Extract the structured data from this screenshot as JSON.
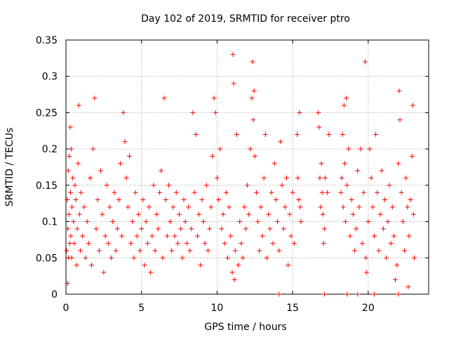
{
  "chart_data": {
    "type": "scatter",
    "title": "Day 102 of 2019, SRMTID for receiver ptro",
    "xlabel": "GPS time / hours",
    "ylabel": "SRMTID / TECUs",
    "xlim": [
      0,
      24
    ],
    "ylim": [
      0,
      0.35
    ],
    "x_ticks": [
      0,
      5,
      10,
      15,
      20
    ],
    "y_ticks": [
      0,
      0.05,
      0.1,
      0.15,
      0.2,
      0.25,
      0.3,
      0.35
    ],
    "x_tick_labels": [
      "0",
      "5",
      "10",
      "15",
      "20"
    ],
    "y_tick_labels": [
      "0",
      "0.05",
      "0.1",
      "0.15",
      "0.2",
      "0.25",
      "0.3",
      "0.35"
    ],
    "grid": true,
    "marker": "+",
    "series": [
      {
        "name": "SRMTID",
        "color": "#ff0000",
        "points": [
          [
            0.05,
            0.06
          ],
          [
            0.08,
            0.13
          ],
          [
            0.1,
            0.015
          ],
          [
            0.12,
            0.09
          ],
          [
            0.15,
            0.17
          ],
          [
            0.18,
            0.05
          ],
          [
            0.2,
            0.11
          ],
          [
            0.22,
            0.19
          ],
          [
            0.25,
            0.07
          ],
          [
            0.28,
            0.23
          ],
          [
            0.3,
            0.14
          ],
          [
            0.32,
            0.08
          ],
          [
            0.35,
            0.2
          ],
          [
            0.38,
            0.05
          ],
          [
            0.4,
            0.12
          ],
          [
            0.45,
            0.16
          ],
          [
            0.5,
            0.1
          ],
          [
            0.55,
            0.07
          ],
          [
            0.6,
            0.15
          ],
          [
            0.65,
            0.13
          ],
          [
            0.7,
            0.04
          ],
          [
            0.75,
            0.09
          ],
          [
            0.8,
            0.18
          ],
          [
            0.85,
            0.26
          ],
          [
            0.9,
            0.11
          ],
          [
            0.95,
            0.06
          ],
          [
            1.0,
            0.14
          ],
          [
            1.1,
            0.08
          ],
          [
            1.2,
            0.12
          ],
          [
            1.3,
            0.05
          ],
          [
            1.4,
            0.1
          ],
          [
            1.5,
            0.07
          ],
          [
            1.6,
            0.16
          ],
          [
            1.7,
            0.04
          ],
          [
            1.8,
            0.2
          ],
          [
            1.9,
            0.27
          ],
          [
            2.0,
            0.09
          ],
          [
            2.1,
            0.13
          ],
          [
            2.2,
            0.06
          ],
          [
            2.3,
            0.17
          ],
          [
            2.4,
            0.11
          ],
          [
            2.5,
            0.03
          ],
          [
            2.6,
            0.08
          ],
          [
            2.7,
            0.15
          ],
          [
            2.8,
            0.07
          ],
          [
            2.9,
            0.12
          ],
          [
            3.0,
            0.05
          ],
          [
            3.1,
            0.1
          ],
          [
            3.2,
            0.14
          ],
          [
            3.3,
            0.06
          ],
          [
            3.4,
            0.09
          ],
          [
            3.5,
            0.13
          ],
          [
            3.6,
            0.18
          ],
          [
            3.7,
            0.08
          ],
          [
            3.8,
            0.25
          ],
          [
            3.9,
            0.21
          ],
          [
            4.0,
            0.16
          ],
          [
            4.1,
            0.12
          ],
          [
            4.2,
            0.19
          ],
          [
            4.3,
            0.07
          ],
          [
            4.4,
            0.1
          ],
          [
            4.5,
            0.05
          ],
          [
            4.6,
            0.14
          ],
          [
            4.7,
            0.08
          ],
          [
            4.8,
            0.11
          ],
          [
            4.9,
            0.06
          ],
          [
            5.0,
            0.09
          ],
          [
            5.1,
            0.13
          ],
          [
            5.2,
            0.04
          ],
          [
            5.3,
            0.1
          ],
          [
            5.4,
            0.07
          ],
          [
            5.5,
            0.12
          ],
          [
            5.6,
            0.03
          ],
          [
            5.7,
            0.08
          ],
          [
            5.8,
            0.15
          ],
          [
            5.9,
            0.06
          ],
          [
            6.0,
            0.11
          ],
          [
            6.1,
            0.09
          ],
          [
            6.2,
            0.14
          ],
          [
            6.3,
            0.17
          ],
          [
            6.4,
            0.05
          ],
          [
            6.5,
            0.27
          ],
          [
            6.6,
            0.13
          ],
          [
            6.7,
            0.08
          ],
          [
            6.8,
            0.15
          ],
          [
            6.9,
            0.1
          ],
          [
            7.0,
            0.06
          ],
          [
            7.1,
            0.12
          ],
          [
            7.2,
            0.08
          ],
          [
            7.3,
            0.14
          ],
          [
            7.4,
            0.07
          ],
          [
            7.5,
            0.11
          ],
          [
            7.6,
            0.09
          ],
          [
            7.7,
            0.05
          ],
          [
            7.8,
            0.13
          ],
          [
            7.9,
            0.1
          ],
          [
            8.0,
            0.07
          ],
          [
            8.1,
            0.12
          ],
          [
            8.2,
            0.06
          ],
          [
            8.3,
            0.09
          ],
          [
            8.4,
            0.25
          ],
          [
            8.5,
            0.14
          ],
          [
            8.6,
            0.22
          ],
          [
            8.7,
            0.08
          ],
          [
            8.8,
            0.11
          ],
          [
            8.9,
            0.04
          ],
          [
            9.0,
            0.13
          ],
          [
            9.1,
            0.1
          ],
          [
            9.2,
            0.07
          ],
          [
            9.3,
            0.15
          ],
          [
            9.4,
            0.06
          ],
          [
            9.5,
            0.09
          ],
          [
            9.6,
            0.12
          ],
          [
            9.7,
            0.19
          ],
          [
            9.8,
            0.27
          ],
          [
            9.9,
            0.25
          ],
          [
            10.0,
            0.16
          ],
          [
            10.1,
            0.13
          ],
          [
            10.2,
            0.2
          ],
          [
            10.3,
            0.09
          ],
          [
            10.4,
            0.11
          ],
          [
            10.5,
            0.07
          ],
          [
            10.6,
            0.14
          ],
          [
            10.7,
            0.05
          ],
          [
            10.8,
            0.12
          ],
          [
            10.9,
            0.08
          ],
          [
            11.0,
            0.03
          ],
          [
            11.05,
            0.33
          ],
          [
            11.1,
            0.29
          ],
          [
            11.15,
            0.02
          ],
          [
            11.2,
            0.06
          ],
          [
            11.3,
            0.22
          ],
          [
            11.4,
            0.04
          ],
          [
            11.5,
            0.1
          ],
          [
            11.6,
            0.07
          ],
          [
            11.7,
            0.05
          ],
          [
            11.8,
            0.12
          ],
          [
            11.9,
            0.09
          ],
          [
            12.0,
            0.15
          ],
          [
            12.1,
            0.11
          ],
          [
            12.2,
            0.2
          ],
          [
            12.3,
            0.27
          ],
          [
            12.35,
            0.32
          ],
          [
            12.4,
            0.24
          ],
          [
            12.45,
            0.28
          ],
          [
            12.5,
            0.19
          ],
          [
            12.6,
            0.14
          ],
          [
            12.7,
            0.1
          ],
          [
            12.8,
            0.06
          ],
          [
            12.9,
            0.12
          ],
          [
            13.0,
            0.08
          ],
          [
            13.1,
            0.16
          ],
          [
            13.2,
            0.22
          ],
          [
            13.3,
            0.05
          ],
          [
            13.4,
            0.11
          ],
          [
            13.5,
            0.09
          ],
          [
            13.6,
            0.14
          ],
          [
            13.7,
            0.07
          ],
          [
            13.8,
            0.18
          ],
          [
            13.9,
            0.13
          ],
          [
            14.0,
            0.1
          ],
          [
            14.1,
            0.06
          ],
          [
            14.2,
            0.21
          ],
          [
            14.3,
            0.15
          ],
          [
            14.4,
            0.09
          ],
          [
            14.5,
            0.12
          ],
          [
            14.6,
            0.16
          ],
          [
            14.7,
            0.04
          ],
          [
            14.8,
            0.11
          ],
          [
            14.9,
            0.08
          ],
          [
            15.0,
            0.14
          ],
          [
            15.1,
            0.07
          ],
          [
            15.3,
            0.22
          ],
          [
            15.35,
            0.16
          ],
          [
            15.4,
            0.13
          ],
          [
            15.45,
            0.25
          ],
          [
            15.5,
            0.12
          ],
          [
            15.55,
            0.1
          ],
          [
            16.7,
            0.25
          ],
          [
            16.75,
            0.23
          ],
          [
            16.8,
            0.16
          ],
          [
            16.85,
            0.12
          ],
          [
            16.9,
            0.18
          ],
          [
            16.95,
            0.14
          ],
          [
            17.0,
            0.11
          ],
          [
            17.05,
            0.07
          ],
          [
            17.1,
            0.09
          ],
          [
            17.15,
            0.16
          ],
          [
            17.3,
            0.14
          ],
          [
            17.4,
            0.22
          ],
          [
            18.2,
            0.14
          ],
          [
            18.25,
            0.16
          ],
          [
            18.3,
            0.22
          ],
          [
            18.35,
            0.12
          ],
          [
            18.4,
            0.26
          ],
          [
            18.45,
            0.18
          ],
          [
            18.5,
            0.1
          ],
          [
            18.55,
            0.27
          ],
          [
            18.6,
            0.15
          ],
          [
            18.7,
            0.2
          ],
          [
            18.8,
            0.08
          ],
          [
            18.9,
            0.13
          ],
          [
            19.0,
            0.11
          ],
          [
            19.1,
            0.06
          ],
          [
            19.2,
            0.09
          ],
          [
            19.3,
            0.17
          ],
          [
            19.4,
            0.12
          ],
          [
            19.5,
            0.2
          ],
          [
            19.6,
            0.07
          ],
          [
            19.7,
            0.14
          ],
          [
            19.8,
            0.32
          ],
          [
            19.85,
            0.05
          ],
          [
            19.9,
            0.03
          ],
          [
            20.0,
            0.1
          ],
          [
            20.1,
            0.2
          ],
          [
            20.2,
            0.16
          ],
          [
            20.3,
            0.12
          ],
          [
            20.4,
            0.08
          ],
          [
            20.5,
            0.22
          ],
          [
            20.6,
            0.14
          ],
          [
            20.7,
            0.06
          ],
          [
            20.8,
            0.11
          ],
          [
            20.9,
            0.17
          ],
          [
            21.0,
            0.09
          ],
          [
            21.1,
            0.13
          ],
          [
            21.2,
            0.05
          ],
          [
            21.3,
            0.1
          ],
          [
            21.4,
            0.15
          ],
          [
            21.5,
            0.07
          ],
          [
            21.6,
            0.12
          ],
          [
            21.7,
            0.08
          ],
          [
            21.8,
            0.02
          ],
          [
            21.9,
            0.04
          ],
          [
            22.0,
            0.18
          ],
          [
            22.05,
            0.28
          ],
          [
            22.1,
            0.24
          ],
          [
            22.2,
            0.14
          ],
          [
            22.3,
            0.1
          ],
          [
            22.4,
            0.06
          ],
          [
            22.5,
            0.16
          ],
          [
            22.6,
            0.12
          ],
          [
            22.65,
            0.01
          ],
          [
            22.7,
            0.08
          ],
          [
            22.8,
            0.13
          ],
          [
            22.9,
            0.19
          ],
          [
            22.95,
            0.26
          ],
          [
            23.0,
            0.11
          ],
          [
            23.05,
            0.05
          ]
        ]
      },
      {
        "name": "zero_markers",
        "color": "#ff0000",
        "points": [
          [
            14.1,
            0
          ],
          [
            17.1,
            0
          ],
          [
            18.6,
            0
          ],
          [
            19.3,
            0
          ],
          [
            20.4,
            0
          ],
          [
            22.0,
            0
          ]
        ]
      }
    ]
  }
}
